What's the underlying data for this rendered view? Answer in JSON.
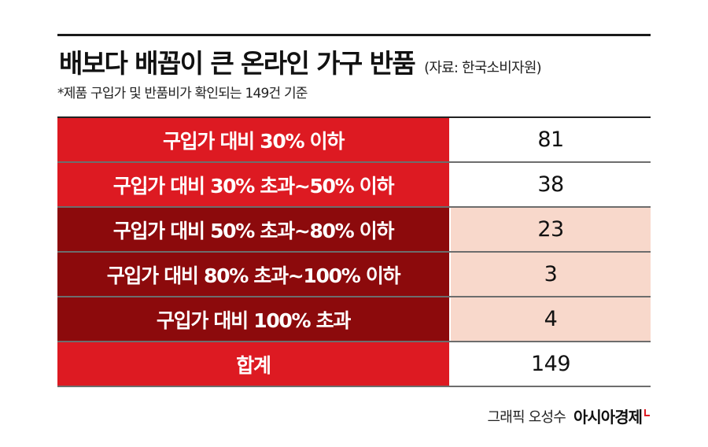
{
  "header": {
    "title": "배보다 배꼽이 큰 온라인 가구 반품",
    "source": "(자료: 한국소비자원)",
    "footnote": "*제품 구입가 및 반품비가 확인되는 149건 기준"
  },
  "colors": {
    "bright_red": "#dd1a22",
    "dark_red": "#8c0a0c",
    "peach": "#f8d8cb",
    "white": "#ffffff"
  },
  "chart_data": {
    "type": "table",
    "rows": [
      {
        "label": "구입가 대비 30% 이하",
        "value": 81
      },
      {
        "label": "구입가 대비 30% 초과~50% 이하",
        "value": 38
      },
      {
        "label": "구입가 대비 50% 초과~80% 이하",
        "value": 23
      },
      {
        "label": "구입가 대비 80% 초과~100% 이하",
        "value": 3
      },
      {
        "label": "구입가 대비 100% 초과",
        "value": 4
      },
      {
        "label": "합계",
        "value": 149
      }
    ]
  },
  "footer": {
    "credit": "그래픽 오성수",
    "brand": "아시아경제"
  }
}
